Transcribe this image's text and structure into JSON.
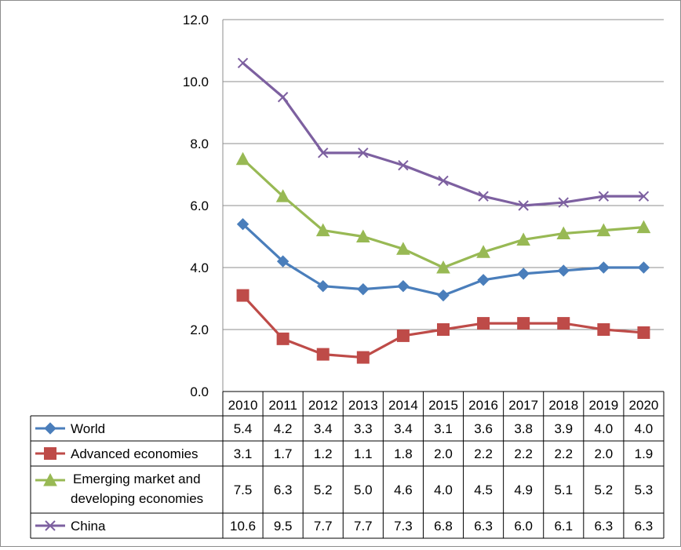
{
  "chart_data": {
    "type": "line",
    "title": "",
    "xlabel": "",
    "ylabel": "",
    "ylim": [
      0,
      12
    ],
    "yticks": [
      "0.0",
      "2.0",
      "4.0",
      "6.0",
      "8.0",
      "10.0",
      "12.0"
    ],
    "grid": true,
    "legend_position": "data table below plot",
    "categories": [
      "2010",
      "2011",
      "2012",
      "2013",
      "2014",
      "2015",
      "2016",
      "2017",
      "2018",
      "2019",
      "2020"
    ],
    "series": [
      {
        "name": "World",
        "name_lines": [
          "World"
        ],
        "marker": "diamond",
        "color": "#4a7ebb",
        "values": [
          5.4,
          4.2,
          3.4,
          3.3,
          3.4,
          3.1,
          3.6,
          3.8,
          3.9,
          4.0,
          4.0
        ],
        "labels": [
          "5.4",
          "4.2",
          "3.4",
          "3.3",
          "3.4",
          "3.1",
          "3.6",
          "3.8",
          "3.9",
          "4.0",
          "4.0"
        ]
      },
      {
        "name": "Advanced economies",
        "name_lines": [
          "Advanced economies"
        ],
        "marker": "square",
        "color": "#be4b48",
        "values": [
          3.1,
          1.7,
          1.2,
          1.1,
          1.8,
          2.0,
          2.2,
          2.2,
          2.2,
          2.0,
          1.9
        ],
        "labels": [
          "3.1",
          "1.7",
          "1.2",
          "1.1",
          "1.8",
          "2.0",
          "2.2",
          "2.2",
          "2.2",
          "2.0",
          "1.9"
        ]
      },
      {
        "name": "Emerging market and developing economies",
        "name_lines": [
          "Emerging market and",
          "developing economies"
        ],
        "marker": "triangle",
        "color": "#98b954",
        "values": [
          7.5,
          6.3,
          5.2,
          5.0,
          4.6,
          4.0,
          4.5,
          4.9,
          5.1,
          5.2,
          5.3
        ],
        "labels": [
          "7.5",
          "6.3",
          "5.2",
          "5.0",
          "4.6",
          "4.0",
          "4.5",
          "4.9",
          "5.1",
          "5.2",
          "5.3"
        ]
      },
      {
        "name": "China",
        "name_lines": [
          "China"
        ],
        "marker": "x",
        "color": "#7d60a0",
        "values": [
          10.6,
          9.5,
          7.7,
          7.7,
          7.3,
          6.8,
          6.3,
          6.0,
          6.1,
          6.3,
          6.3
        ],
        "labels": [
          "10.6",
          "9.5",
          "7.7",
          "7.7",
          "7.3",
          "6.8",
          "6.3",
          "6.0",
          "6.1",
          "6.3",
          "6.3"
        ]
      }
    ]
  }
}
